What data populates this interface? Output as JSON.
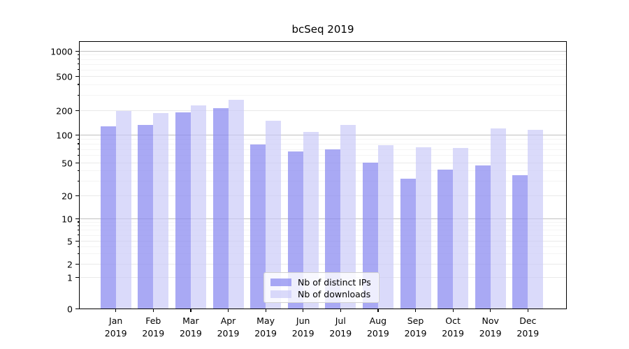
{
  "title": "bcSeq 2019",
  "legend": {
    "items": [
      {
        "label": "Nb of distinct IPs",
        "color": "rgba(140,140,240,0.75)"
      },
      {
        "label": "Nb of downloads",
        "color": "rgba(200,200,247,0.68)"
      }
    ]
  },
  "chart_data": {
    "type": "bar",
    "title": "bcSeq 2019",
    "categories": [
      {
        "month": "Jan",
        "year": "2019"
      },
      {
        "month": "Feb",
        "year": "2019"
      },
      {
        "month": "Mar",
        "year": "2019"
      },
      {
        "month": "Apr",
        "year": "2019"
      },
      {
        "month": "May",
        "year": "2019"
      },
      {
        "month": "Jun",
        "year": "2019"
      },
      {
        "month": "Jul",
        "year": "2019"
      },
      {
        "month": "Aug",
        "year": "2019"
      },
      {
        "month": "Sep",
        "year": "2019"
      },
      {
        "month": "Oct",
        "year": "2019"
      },
      {
        "month": "Nov",
        "year": "2019"
      },
      {
        "month": "Dec",
        "year": "2019"
      }
    ],
    "series": [
      {
        "name": "Nb of distinct IPs",
        "color": "rgba(140,140,240,0.75)",
        "values": [
          128,
          133,
          190,
          210,
          78,
          66,
          70,
          50,
          32,
          41,
          46,
          35
        ]
      },
      {
        "name": "Nb of downloads",
        "color": "rgba(200,200,247,0.68)",
        "values": [
          195,
          186,
          230,
          265,
          150,
          108,
          131,
          77,
          73,
          72,
          119,
          114
        ]
      }
    ],
    "yscale": "symlog",
    "ylim": [
      0,
      1000
    ],
    "yticks": [
      0,
      1,
      2,
      5,
      10,
      20,
      50,
      100,
      200,
      500,
      1000
    ],
    "ytick_labels": [
      "0",
      "1",
      "2",
      "5",
      "10",
      "20",
      "50",
      "100",
      "200",
      "500",
      "1000"
    ],
    "minor_grid_values": [
      3,
      4,
      6,
      7,
      8,
      9,
      30,
      40,
      60,
      70,
      80,
      90,
      300,
      400,
      600,
      700,
      800,
      900
    ],
    "grid": true,
    "legend_position": "lower center"
  }
}
